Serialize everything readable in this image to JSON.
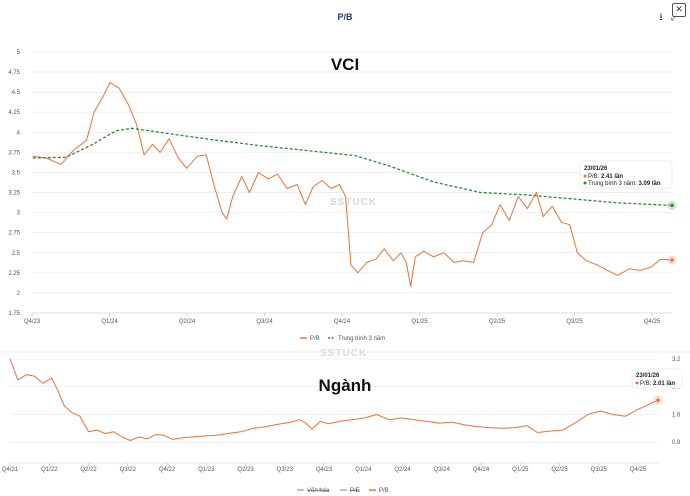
{
  "header": {
    "title": "P/B",
    "download_icon": "download-icon",
    "expand_icon": "expand-icon",
    "close_icon": "close-icon"
  },
  "watermark": "SSTUCK",
  "colors": {
    "pb": "#e8733a",
    "avg": "#2e8b2e",
    "grid": "#e6e6e6"
  },
  "chart_data": [
    {
      "type": "line",
      "title": "VCI",
      "ylim": [
        1.75,
        5
      ],
      "yticks": [
        "5",
        "4.75",
        "4.5",
        "4.25",
        "4",
        "3.75",
        "3.5",
        "3.25",
        "3",
        "2.75",
        "2.5",
        "2.25",
        "2",
        "1.75"
      ],
      "xticks": [
        "Q4/23",
        "Q1/24",
        "Q2/24",
        "Q3/24",
        "Q4/24",
        "Q1/25",
        "Q2/25",
        "Q3/25",
        "Q4/25"
      ],
      "x_range": [
        "2023-10-01",
        "2026-01-23"
      ],
      "series": [
        {
          "name": "P/B",
          "style": "solid",
          "points": [
            [
              "2023-10-02",
              3.7
            ],
            [
              "2023-10-20",
              3.68
            ],
            [
              "2023-11-08",
              3.6
            ],
            [
              "2023-11-25",
              3.78
            ],
            [
              "2023-12-12",
              3.9
            ],
            [
              "2023-12-22",
              4.25
            ],
            [
              "2024-01-03",
              4.45
            ],
            [
              "2024-01-12",
              4.62
            ],
            [
              "2024-01-24",
              4.55
            ],
            [
              "2024-02-05",
              4.35
            ],
            [
              "2024-02-16",
              4.1
            ],
            [
              "2024-02-26",
              3.72
            ],
            [
              "2024-03-08",
              3.85
            ],
            [
              "2024-03-18",
              3.75
            ],
            [
              "2024-03-30",
              3.92
            ],
            [
              "2024-04-10",
              3.7
            ],
            [
              "2024-04-22",
              3.55
            ],
            [
              "2024-05-06",
              3.7
            ],
            [
              "2024-05-18",
              3.72
            ],
            [
              "2024-05-28",
              3.35
            ],
            [
              "2024-06-08",
              3.0
            ],
            [
              "2024-06-14",
              2.92
            ],
            [
              "2024-06-22",
              3.2
            ],
            [
              "2024-07-04",
              3.45
            ],
            [
              "2024-07-14",
              3.25
            ],
            [
              "2024-07-26",
              3.5
            ],
            [
              "2024-08-08",
              3.42
            ],
            [
              "2024-08-20",
              3.48
            ],
            [
              "2024-09-02",
              3.3
            ],
            [
              "2024-09-15",
              3.35
            ],
            [
              "2024-09-26",
              3.1
            ],
            [
              "2024-10-06",
              3.32
            ],
            [
              "2024-10-18",
              3.4
            ],
            [
              "2024-10-30",
              3.3
            ],
            [
              "2024-11-10",
              3.35
            ],
            [
              "2024-11-18",
              3.2
            ],
            [
              "2024-11-25",
              2.35
            ],
            [
              "2024-12-04",
              2.25
            ],
            [
              "2024-12-16",
              2.38
            ],
            [
              "2024-12-28",
              2.42
            ],
            [
              "2025-01-08",
              2.55
            ],
            [
              "2025-01-20",
              2.4
            ],
            [
              "2025-01-30",
              2.5
            ],
            [
              "2025-02-06",
              2.38
            ],
            [
              "2025-02-12",
              2.08
            ],
            [
              "2025-02-18",
              2.45
            ],
            [
              "2025-03-01",
              2.52
            ],
            [
              "2025-03-14",
              2.45
            ],
            [
              "2025-03-28",
              2.5
            ],
            [
              "2025-04-10",
              2.38
            ],
            [
              "2025-04-22",
              2.4
            ],
            [
              "2025-05-06",
              2.38
            ],
            [
              "2025-05-18",
              2.75
            ],
            [
              "2025-05-30",
              2.85
            ],
            [
              "2025-06-10",
              3.1
            ],
            [
              "2025-06-22",
              2.9
            ],
            [
              "2025-07-04",
              3.2
            ],
            [
              "2025-07-16",
              3.05
            ],
            [
              "2025-07-28",
              3.25
            ],
            [
              "2025-08-06",
              2.95
            ],
            [
              "2025-08-18",
              3.08
            ],
            [
              "2025-08-30",
              2.88
            ],
            [
              "2025-09-10",
              2.85
            ],
            [
              "2025-09-20",
              2.5
            ],
            [
              "2025-10-02",
              2.4
            ],
            [
              "2025-10-16",
              2.35
            ],
            [
              "2025-10-30",
              2.28
            ],
            [
              "2025-11-12",
              2.22
            ],
            [
              "2025-11-28",
              2.3
            ],
            [
              "2025-12-12",
              2.28
            ],
            [
              "2025-12-26",
              2.32
            ],
            [
              "2026-01-08",
              2.42
            ],
            [
              "2026-01-23",
              2.41
            ]
          ]
        },
        {
          "name": "Trung bình 3 năm",
          "style": "dashed",
          "points": [
            [
              "2023-10-02",
              3.68
            ],
            [
              "2023-11-15",
              3.69
            ],
            [
              "2023-12-20",
              3.85
            ],
            [
              "2024-01-20",
              4.02
            ],
            [
              "2024-02-10",
              4.05
            ],
            [
              "2024-04-01",
              3.98
            ],
            [
              "2024-06-01",
              3.9
            ],
            [
              "2024-08-01",
              3.83
            ],
            [
              "2024-10-01",
              3.77
            ],
            [
              "2024-12-01",
              3.71
            ],
            [
              "2025-01-15",
              3.58
            ],
            [
              "2025-03-15",
              3.38
            ],
            [
              "2025-05-15",
              3.25
            ],
            [
              "2025-07-15",
              3.22
            ],
            [
              "2025-09-15",
              3.17
            ],
            [
              "2025-11-15",
              3.12
            ],
            [
              "2026-01-23",
              3.09
            ]
          ]
        }
      ],
      "legend": [
        "P/B",
        "Trung bình 3 năm"
      ],
      "tooltip": {
        "date": "23/01/26",
        "pb_label": "P/B: ",
        "pb_value": "2.41 lần",
        "avg_label": "Trung bình 3 năm: ",
        "avg_value": "3.09 lần"
      }
    },
    {
      "type": "line",
      "title": "Ngành",
      "ylim": [
        0.2,
        3.2
      ],
      "yticks": [
        "3.2",
        "2.4",
        "1.6",
        "0.8"
      ],
      "xticks": [
        "Q4/21",
        "Q1/22",
        "Q2/22",
        "Q3/22",
        "Q4/22",
        "Q1/23",
        "Q2/23",
        "Q3/23",
        "Q4/23",
        "Q1/24",
        "Q2/24",
        "Q3/24",
        "Q4/24",
        "Q1/25",
        "Q2/25",
        "Q3/25",
        "Q4/25"
      ],
      "x_range": [
        "2021-10-01",
        "2026-01-23"
      ],
      "series": [
        {
          "name": "P/B",
          "style": "solid",
          "points": [
            [
              "2021-10-01",
              3.2
            ],
            [
              "2021-10-20",
              2.6
            ],
            [
              "2021-11-10",
              2.75
            ],
            [
              "2021-11-30",
              2.7
            ],
            [
              "2021-12-20",
              2.5
            ],
            [
              "2022-01-10",
              2.65
            ],
            [
              "2022-01-25",
              2.3
            ],
            [
              "2022-02-10",
              1.85
            ],
            [
              "2022-03-01",
              1.65
            ],
            [
              "2022-03-20",
              1.55
            ],
            [
              "2022-04-10",
              1.1
            ],
            [
              "2022-05-01",
              1.15
            ],
            [
              "2022-05-20",
              1.05
            ],
            [
              "2022-06-10",
              1.1
            ],
            [
              "2022-07-01",
              0.95
            ],
            [
              "2022-07-20",
              0.85
            ],
            [
              "2022-08-10",
              0.95
            ],
            [
              "2022-09-01",
              0.9
            ],
            [
              "2022-09-20",
              1.02
            ],
            [
              "2022-10-10",
              1.0
            ],
            [
              "2022-11-01",
              0.88
            ],
            [
              "2022-11-20",
              0.92
            ],
            [
              "2022-12-15",
              0.95
            ],
            [
              "2023-01-15",
              0.98
            ],
            [
              "2023-02-15",
              1.0
            ],
            [
              "2023-03-15",
              1.05
            ],
            [
              "2023-04-15",
              1.1
            ],
            [
              "2023-05-15",
              1.2
            ],
            [
              "2023-06-15",
              1.25
            ],
            [
              "2023-07-15",
              1.32
            ],
            [
              "2023-08-15",
              1.38
            ],
            [
              "2023-09-05",
              1.45
            ],
            [
              "2023-09-20",
              1.35
            ],
            [
              "2023-10-05",
              1.18
            ],
            [
              "2023-10-25",
              1.4
            ],
            [
              "2023-11-15",
              1.33
            ],
            [
              "2023-12-10",
              1.4
            ],
            [
              "2024-01-10",
              1.45
            ],
            [
              "2024-02-10",
              1.5
            ],
            [
              "2024-03-10",
              1.6
            ],
            [
              "2024-04-10",
              1.45
            ],
            [
              "2024-05-10",
              1.5
            ],
            [
              "2024-06-10",
              1.45
            ],
            [
              "2024-07-10",
              1.4
            ],
            [
              "2024-08-10",
              1.35
            ],
            [
              "2024-09-10",
              1.38
            ],
            [
              "2024-10-10",
              1.3
            ],
            [
              "2024-11-10",
              1.25
            ],
            [
              "2024-12-10",
              1.22
            ],
            [
              "2025-01-10",
              1.2
            ],
            [
              "2025-02-10",
              1.22
            ],
            [
              "2025-03-10",
              1.28
            ],
            [
              "2025-04-05",
              1.08
            ],
            [
              "2025-05-05",
              1.12
            ],
            [
              "2025-06-05",
              1.15
            ],
            [
              "2025-07-05",
              1.35
            ],
            [
              "2025-08-05",
              1.6
            ],
            [
              "2025-09-05",
              1.7
            ],
            [
              "2025-10-05",
              1.6
            ],
            [
              "2025-11-05",
              1.55
            ],
            [
              "2025-12-05",
              1.75
            ],
            [
              "2025-12-25",
              1.85
            ],
            [
              "2026-01-10",
              1.95
            ],
            [
              "2026-01-23",
              2.01
            ]
          ]
        }
      ],
      "legend": [
        "Vốn hóa",
        "P/E",
        "P/B"
      ],
      "tooltip": {
        "date": "23/01/26",
        "pb_label": "P/B: ",
        "pb_value": "2.01 lần"
      }
    }
  ]
}
